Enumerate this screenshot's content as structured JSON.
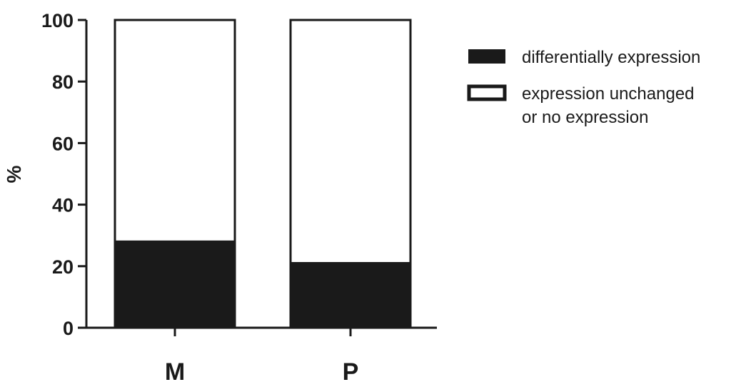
{
  "chart_data": {
    "type": "bar",
    "stacked": true,
    "title": "",
    "xlabel": "",
    "ylabel": "%",
    "ylim": [
      0,
      100
    ],
    "yticks": [
      "0",
      "20",
      "40",
      "60",
      "80",
      "100"
    ],
    "categories": [
      "M",
      "P"
    ],
    "series": [
      {
        "name": "differentially expression",
        "color": "#1a1a1a",
        "values": [
          28,
          21
        ]
      },
      {
        "name": "expression unchanged or no expression",
        "color": "#ffffff",
        "values": [
          72,
          79
        ]
      }
    ],
    "legend": {
      "placement": "right",
      "items": [
        {
          "lines": [
            "differentially expression"
          ],
          "swatch": "filled"
        },
        {
          "lines": [
            "expression unchanged",
            "or no expression"
          ],
          "swatch": "outline"
        }
      ]
    },
    "grid": false
  }
}
